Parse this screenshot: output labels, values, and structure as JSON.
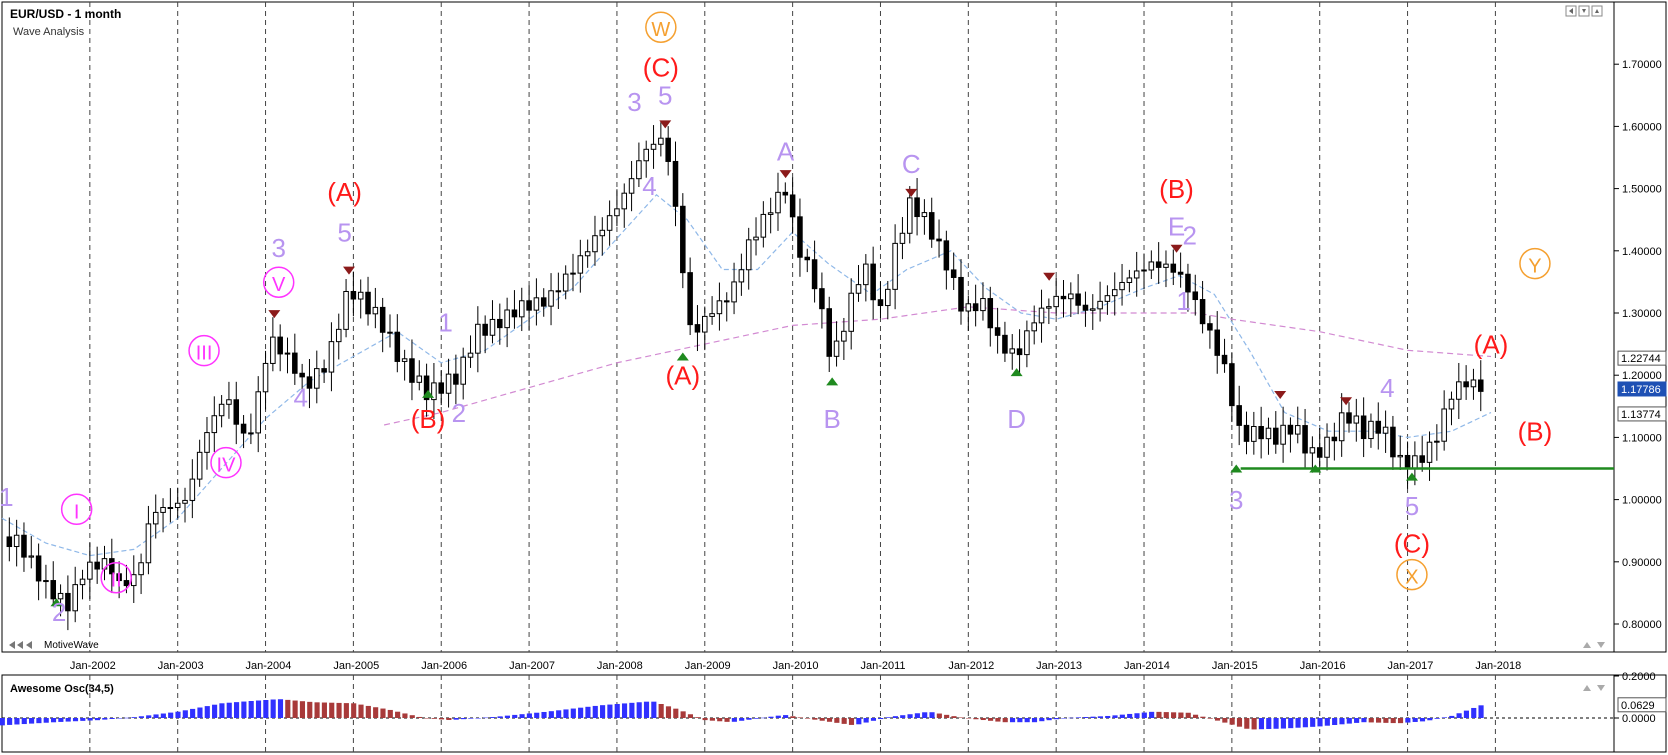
{
  "header": {
    "symbol_title": "EUR/USD - 1 month",
    "subtitle": "Wave Analysis",
    "footer_label": "MotiveWave"
  },
  "price_axis": {
    "ticks": [
      "1.70000",
      "1.60000",
      "1.50000",
      "1.40000",
      "1.30000",
      "1.20000",
      "1.10000",
      "1.00000",
      "0.90000",
      "0.80000"
    ],
    "badges": [
      {
        "label": "1.22744",
        "value": 1.22744,
        "style": "white"
      },
      {
        "label": "1.13774",
        "value": 1.13774,
        "style": "white"
      },
      {
        "label": "1.17786",
        "value": 1.17786,
        "style": "current"
      }
    ]
  },
  "time_axis": {
    "labels": [
      "Jan-2002",
      "Jan-2003",
      "Jan-2004",
      "Jan-2005",
      "Jan-2006",
      "Jan-2007",
      "Jan-2008",
      "Jan-2009",
      "Jan-2010",
      "Jan-2011",
      "Jan-2012",
      "Jan-2013",
      "Jan-2014",
      "Jan-2015",
      "Jan-2016",
      "Jan-2017",
      "Jan-2018"
    ]
  },
  "oscillator": {
    "title": "Awesome Osc(34,5)",
    "ticks": [
      "0.2000",
      "0.0000"
    ],
    "current_label": "0.0629"
  },
  "colors": {
    "bull_candle": "#ffffff",
    "bear_candle": "#000000",
    "ma_fast": "#8fb8e8",
    "ma_slow": "#d28ad2",
    "support_line": "#1f8a1f",
    "wave_red": "#ff1a1a",
    "wave_lavender": "#b894f0",
    "wave_magenta": "#ff33ff",
    "wave_orange": "#f5a030",
    "osc_up": "#3030ff",
    "osc_down": "#a83a3a",
    "current_badge": "#1e50b4"
  },
  "wave_labels": [
    {
      "text": "W",
      "circled": true,
      "color": "orange",
      "date": 2008.5,
      "price": 1.745
    },
    {
      "text": "(C)",
      "color": "red",
      "date": 2008.5,
      "price": 1.68
    },
    {
      "text": "3",
      "color": "lavender",
      "date": 2008.2,
      "price": 1.625
    },
    {
      "text": "5",
      "color": "lavender",
      "date": 2008.55,
      "price": 1.635
    },
    {
      "text": "4",
      "color": "lavender",
      "date": 2008.37,
      "price": 1.49
    },
    {
      "text": "(A)",
      "color": "red",
      "date": 2008.75,
      "price": 1.185
    },
    {
      "text": "A",
      "color": "lavender",
      "date": 2009.92,
      "price": 1.545
    },
    {
      "text": "B",
      "color": "lavender",
      "date": 2010.45,
      "price": 1.115
    },
    {
      "text": "C",
      "color": "lavender",
      "date": 2011.35,
      "price": 1.525
    },
    {
      "text": "D",
      "color": "lavender",
      "date": 2012.55,
      "price": 1.115
    },
    {
      "text": "(B)",
      "color": "red",
      "date": 2014.37,
      "price": 1.485
    },
    {
      "text": "E",
      "color": "lavender",
      "date": 2014.37,
      "price": 1.425
    },
    {
      "text": "2",
      "color": "lavender",
      "date": 2014.52,
      "price": 1.41
    },
    {
      "text": "1",
      "color": "lavender",
      "date": 2014.45,
      "price": 1.305
    },
    {
      "text": "3",
      "color": "lavender",
      "date": 2015.05,
      "price": 0.985
    },
    {
      "text": "4",
      "color": "lavender",
      "date": 2016.77,
      "price": 1.165
    },
    {
      "text": "5",
      "color": "lavender",
      "date": 2017.05,
      "price": 0.975
    },
    {
      "text": "(C)",
      "color": "red",
      "date": 2017.05,
      "price": 0.915
    },
    {
      "text": "X",
      "circled": true,
      "color": "orange",
      "date": 2017.05,
      "price": 0.865
    },
    {
      "text": "(A)",
      "color": "red",
      "date": 2017.95,
      "price": 1.235
    },
    {
      "text": "(B)",
      "color": "red",
      "date": 2018.45,
      "price": 1.095
    },
    {
      "text": "Y",
      "circled": true,
      "color": "orange",
      "date": 2018.45,
      "price": 1.365
    },
    {
      "text": "1",
      "color": "lavender",
      "date": 2001.05,
      "price": 0.99
    },
    {
      "text": "2",
      "color": "lavender",
      "date": 2001.65,
      "price": 0.805
    },
    {
      "text": "I",
      "circled": true,
      "color": "magenta",
      "date": 2001.85,
      "price": 0.97
    },
    {
      "text": "II",
      "circled": true,
      "color": "magenta",
      "date": 2002.3,
      "price": 0.86
    },
    {
      "text": "III",
      "circled": true,
      "color": "magenta",
      "date": 2003.3,
      "price": 1.225
    },
    {
      "text": "IV",
      "circled": true,
      "color": "magenta",
      "date": 2003.55,
      "price": 1.045
    },
    {
      "text": "V",
      "circled": true,
      "color": "magenta",
      "date": 2004.15,
      "price": 1.335
    },
    {
      "text": "3",
      "color": "lavender",
      "date": 2004.15,
      "price": 1.39
    },
    {
      "text": "4",
      "color": "lavender",
      "date": 2004.4,
      "price": 1.15
    },
    {
      "text": "(A)",
      "color": "red",
      "date": 2004.9,
      "price": 1.48
    },
    {
      "text": "5",
      "color": "lavender",
      "date": 2004.9,
      "price": 1.415
    },
    {
      "text": "(B)",
      "color": "red",
      "date": 2005.85,
      "price": 1.115
    },
    {
      "text": "2",
      "color": "lavender",
      "date": 2006.2,
      "price": 1.125
    },
    {
      "text": "1",
      "color": "lavender",
      "date": 2006.05,
      "price": 1.27
    }
  ],
  "chart_data": {
    "type": "candlestick",
    "title": "EUR/USD - 1 month",
    "ylim": [
      0.755,
      1.8
    ],
    "xlim": [
      2001.0,
      2019.35
    ],
    "grid": "vertical dashed at each January",
    "legend": "none",
    "anchors": [
      [
        2001.0,
        0.94
      ],
      [
        2001.2,
        0.93
      ],
      [
        2001.5,
        0.86
      ],
      [
        2001.75,
        0.83
      ],
      [
        2001.95,
        0.89
      ],
      [
        2002.2,
        0.9
      ],
      [
        2002.35,
        0.86
      ],
      [
        2002.55,
        0.88
      ],
      [
        2002.7,
        0.98
      ],
      [
        2002.95,
        0.99
      ],
      [
        2003.1,
        1.0
      ],
      [
        2003.3,
        1.1
      ],
      [
        2003.55,
        1.17
      ],
      [
        2003.68,
        1.12
      ],
      [
        2003.8,
        1.09
      ],
      [
        2003.95,
        1.19
      ],
      [
        2004.05,
        1.26
      ],
      [
        2004.3,
        1.22
      ],
      [
        2004.45,
        1.18
      ],
      [
        2004.7,
        1.22
      ],
      [
        2004.95,
        1.34
      ],
      [
        2005.1,
        1.32
      ],
      [
        2005.3,
        1.29
      ],
      [
        2005.55,
        1.22
      ],
      [
        2005.85,
        1.17
      ],
      [
        2006.2,
        1.2
      ],
      [
        2006.4,
        1.27
      ],
      [
        2006.6,
        1.28
      ],
      [
        2006.9,
        1.31
      ],
      [
        2007.2,
        1.32
      ],
      [
        2007.5,
        1.37
      ],
      [
        2007.75,
        1.42
      ],
      [
        2008.05,
        1.48
      ],
      [
        2008.3,
        1.56
      ],
      [
        2008.5,
        1.58
      ],
      [
        2008.62,
        1.53
      ],
      [
        2008.72,
        1.4
      ],
      [
        2008.85,
        1.26
      ],
      [
        2009.05,
        1.3
      ],
      [
        2009.3,
        1.33
      ],
      [
        2009.5,
        1.41
      ],
      [
        2009.75,
        1.47
      ],
      [
        2009.92,
        1.5
      ],
      [
        2010.05,
        1.41
      ],
      [
        2010.25,
        1.35
      ],
      [
        2010.45,
        1.22
      ],
      [
        2010.6,
        1.29
      ],
      [
        2010.8,
        1.38
      ],
      [
        2011.0,
        1.3
      ],
      [
        2011.2,
        1.42
      ],
      [
        2011.35,
        1.48
      ],
      [
        2011.55,
        1.44
      ],
      [
        2011.75,
        1.38
      ],
      [
        2011.95,
        1.3
      ],
      [
        2012.15,
        1.32
      ],
      [
        2012.35,
        1.25
      ],
      [
        2012.55,
        1.23
      ],
      [
        2012.75,
        1.29
      ],
      [
        2012.95,
        1.32
      ],
      [
        2013.15,
        1.33
      ],
      [
        2013.35,
        1.3
      ],
      [
        2013.6,
        1.33
      ],
      [
        2013.85,
        1.36
      ],
      [
        2014.1,
        1.38
      ],
      [
        2014.35,
        1.37
      ],
      [
        2014.5,
        1.34
      ],
      [
        2014.7,
        1.28
      ],
      [
        2014.9,
        1.22
      ],
      [
        2015.1,
        1.1
      ],
      [
        2015.3,
        1.11
      ],
      [
        2015.5,
        1.1
      ],
      [
        2015.7,
        1.12
      ],
      [
        2015.9,
        1.07
      ],
      [
        2016.1,
        1.09
      ],
      [
        2016.3,
        1.14
      ],
      [
        2016.5,
        1.11
      ],
      [
        2016.7,
        1.12
      ],
      [
        2016.9,
        1.06
      ],
      [
        2017.1,
        1.06
      ],
      [
        2017.3,
        1.09
      ],
      [
        2017.5,
        1.17
      ],
      [
        2017.65,
        1.19
      ],
      [
        2017.85,
        1.18
      ]
    ],
    "ma_fast": [
      [
        2001.0,
        0.97
      ],
      [
        2001.5,
        0.93
      ],
      [
        2002.0,
        0.91
      ],
      [
        2002.5,
        0.92
      ],
      [
        2003.0,
        0.97
      ],
      [
        2003.5,
        1.05
      ],
      [
        2004.0,
        1.13
      ],
      [
        2004.5,
        1.19
      ],
      [
        2005.0,
        1.23
      ],
      [
        2005.5,
        1.27
      ],
      [
        2006.0,
        1.22
      ],
      [
        2006.5,
        1.24
      ],
      [
        2007.0,
        1.29
      ],
      [
        2007.5,
        1.34
      ],
      [
        2008.0,
        1.42
      ],
      [
        2008.45,
        1.49
      ],
      [
        2008.8,
        1.45
      ],
      [
        2009.2,
        1.37
      ],
      [
        2009.6,
        1.37
      ],
      [
        2010.0,
        1.43
      ],
      [
        2010.4,
        1.38
      ],
      [
        2010.9,
        1.33
      ],
      [
        2011.3,
        1.37
      ],
      [
        2011.8,
        1.4
      ],
      [
        2012.2,
        1.34
      ],
      [
        2012.6,
        1.3
      ],
      [
        2013.0,
        1.29
      ],
      [
        2013.5,
        1.31
      ],
      [
        2014.0,
        1.34
      ],
      [
        2014.4,
        1.36
      ],
      [
        2014.8,
        1.33
      ],
      [
        2015.2,
        1.24
      ],
      [
        2015.6,
        1.14
      ],
      [
        2016.1,
        1.11
      ],
      [
        2016.6,
        1.11
      ],
      [
        2017.0,
        1.1
      ],
      [
        2017.5,
        1.11
      ],
      [
        2017.95,
        1.14
      ]
    ],
    "ma_slow": [
      [
        2005.35,
        1.12
      ],
      [
        2006.0,
        1.14
      ],
      [
        2007.0,
        1.18
      ],
      [
        2008.0,
        1.22
      ],
      [
        2009.0,
        1.25
      ],
      [
        2010.0,
        1.28
      ],
      [
        2011.0,
        1.29
      ],
      [
        2012.0,
        1.31
      ],
      [
        2013.0,
        1.3
      ],
      [
        2014.0,
        1.3
      ],
      [
        2014.6,
        1.3
      ],
      [
        2015.0,
        1.29
      ],
      [
        2016.0,
        1.27
      ],
      [
        2017.0,
        1.24
      ],
      [
        2017.95,
        1.23
      ]
    ],
    "support_line": {
      "price": 1.05,
      "from": 2015.1,
      "to": 2019.35
    },
    "oscillator": [
      [
        2001.0,
        -0.035
      ],
      [
        2001.6,
        -0.02
      ],
      [
        2002.1,
        -0.01
      ],
      [
        2002.5,
        0.004
      ],
      [
        2003.0,
        0.03
      ],
      [
        2003.5,
        0.07
      ],
      [
        2003.8,
        0.08
      ],
      [
        2004.15,
        0.09
      ],
      [
        2004.55,
        0.075
      ],
      [
        2005.0,
        0.07
      ],
      [
        2005.4,
        0.04
      ],
      [
        2005.8,
        0.0
      ],
      [
        2006.1,
        -0.01
      ],
      [
        2006.6,
        0.005
      ],
      [
        2007.2,
        0.03
      ],
      [
        2007.8,
        0.06
      ],
      [
        2008.4,
        0.08
      ],
      [
        2008.7,
        0.04
      ],
      [
        2009.0,
        -0.01
      ],
      [
        2009.3,
        -0.02
      ],
      [
        2009.9,
        0.015
      ],
      [
        2010.2,
        -0.005
      ],
      [
        2010.7,
        -0.035
      ],
      [
        2011.1,
        0.005
      ],
      [
        2011.55,
        0.03
      ],
      [
        2011.95,
        0.0
      ],
      [
        2012.4,
        -0.02
      ],
      [
        2012.75,
        -0.02
      ],
      [
        2013.1,
        0.0
      ],
      [
        2013.6,
        0.01
      ],
      [
        2014.1,
        0.03
      ],
      [
        2014.5,
        0.025
      ],
      [
        2014.9,
        -0.02
      ],
      [
        2015.2,
        -0.055
      ],
      [
        2015.6,
        -0.05
      ],
      [
        2016.0,
        -0.04
      ],
      [
        2016.5,
        -0.02
      ],
      [
        2016.9,
        -0.025
      ],
      [
        2017.2,
        -0.015
      ],
      [
        2017.5,
        0.01
      ],
      [
        2017.85,
        0.0629
      ]
    ]
  }
}
